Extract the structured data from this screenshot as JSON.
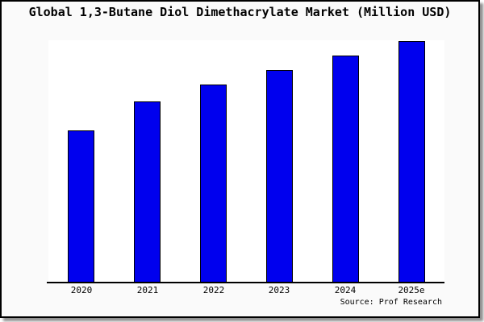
{
  "title": "Global 1,3-Butane Diol Dimethacrylate Market (Million USD)",
  "source_note": "Source: Prof Research",
  "colors": {
    "bar_fill": "#0000ee",
    "bar_border": "#000000",
    "panel_background": "#fafafa",
    "plot_background": "#ffffff",
    "axis": "#000000",
    "panel_border": "#000000",
    "shadow": "#8f8f8f"
  },
  "chart_data": {
    "type": "bar",
    "title": "Global 1,3-Butane Diol Dimethacrylate Market (Million USD)",
    "categories": [
      "2020",
      "2021",
      "2022",
      "2023",
      "2024",
      "2025e"
    ],
    "values": [
      63,
      75,
      82,
      88,
      94,
      100
    ],
    "xlabel": "",
    "ylabel": "",
    "ylim": [
      0,
      100
    ],
    "grid": false,
    "legend_position": "none",
    "y_axis_visible": false,
    "value_note": "no y-axis ticks shown; values are relative estimates indexed to 2025e = 100"
  }
}
